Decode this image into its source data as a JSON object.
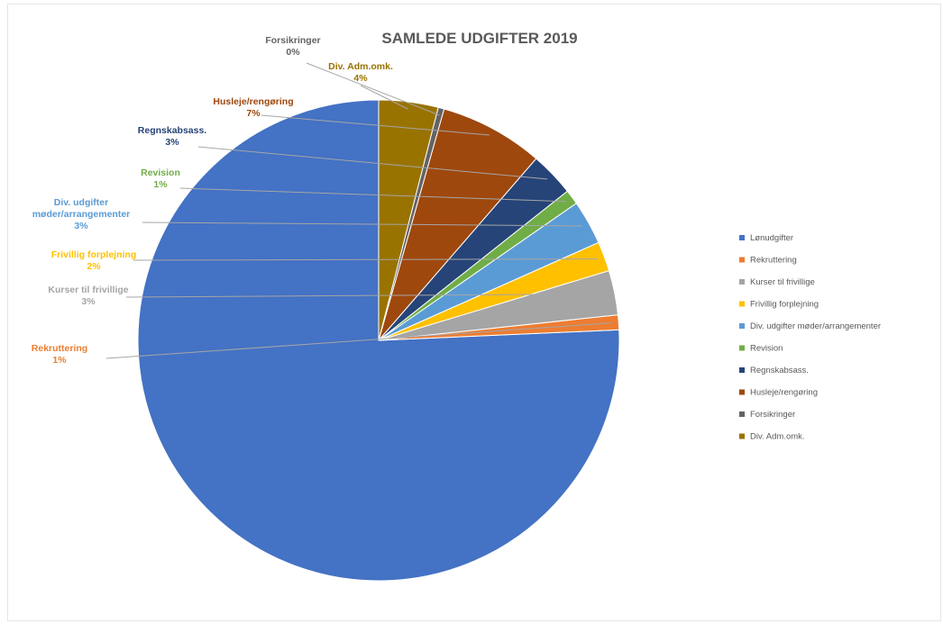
{
  "chart_data": {
    "type": "pie",
    "title": "SAMLEDE UDGIFTER 2019",
    "legend_position": "right",
    "slices": [
      {
        "name": "Lønudgifter",
        "value": 76,
        "label": "",
        "color": "#4472C4"
      },
      {
        "name": "Rekruttering",
        "value": 1,
        "label": "1%",
        "color": "#ED7D31"
      },
      {
        "name": "Kurser til frivillige",
        "value": 3,
        "label": "3%",
        "color": "#A5A5A5"
      },
      {
        "name": "Frivillig forplejning",
        "value": 2,
        "label": "2%",
        "color": "#FFC000"
      },
      {
        "name": "Div. udgifter møder/arrangementer",
        "value": 3,
        "label": "3%",
        "color": "#5B9BD5"
      },
      {
        "name": "Revision",
        "value": 1,
        "label": "1%",
        "color": "#70AD47"
      },
      {
        "name": "Regnskabsass.",
        "value": 3,
        "label": "3%",
        "color": "#264478"
      },
      {
        "name": "Husleje/rengøring",
        "value": 7,
        "label": "7%",
        "color": "#9E480E"
      },
      {
        "name": "Forsikringer",
        "value": 0.4,
        "label": "0%",
        "color": "#636363"
      },
      {
        "name": "Div. Adm.omk.",
        "value": 4,
        "label": "4%",
        "color": "#997300"
      }
    ]
  }
}
